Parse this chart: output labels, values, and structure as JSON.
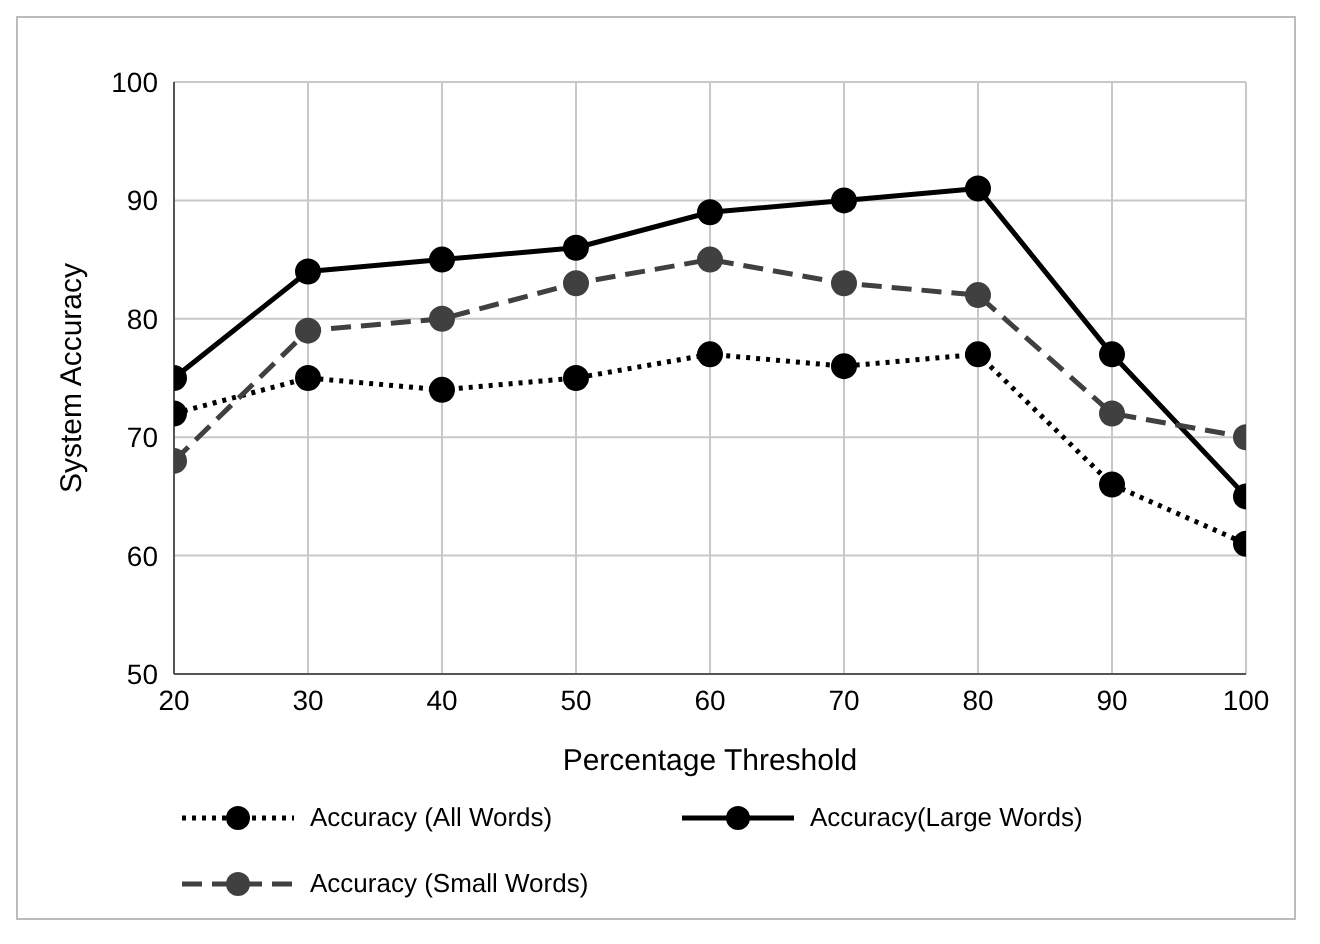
{
  "chart_data": {
    "type": "line",
    "xlabel": "Percentage Threshold",
    "ylabel": "System Accuracy",
    "x": [
      20,
      30,
      40,
      50,
      60,
      70,
      80,
      90,
      100
    ],
    "xlim": [
      20,
      100
    ],
    "xticks": [
      20,
      30,
      40,
      50,
      60,
      70,
      80,
      90,
      100
    ],
    "ylim": [
      50,
      100
    ],
    "yticks": [
      50,
      60,
      70,
      80,
      90,
      100
    ],
    "grid": true,
    "legend": "bottom",
    "marker": "circle",
    "series": [
      {
        "name": "Accuracy (All Words)",
        "color": "#000000",
        "line_style": "dotted",
        "values": [
          72,
          75,
          74,
          75,
          77,
          76,
          77,
          66,
          61
        ]
      },
      {
        "name": "Accuracy(Large Words)",
        "color": "#000000",
        "line_style": "solid",
        "values": [
          75,
          84,
          85,
          86,
          89,
          90,
          91,
          77,
          65
        ]
      },
      {
        "name": "Accuracy (Small Words)",
        "color": "#404040",
        "line_style": "dashed",
        "values": [
          68,
          79,
          80,
          83,
          85,
          83,
          82,
          72,
          70
        ]
      }
    ]
  }
}
